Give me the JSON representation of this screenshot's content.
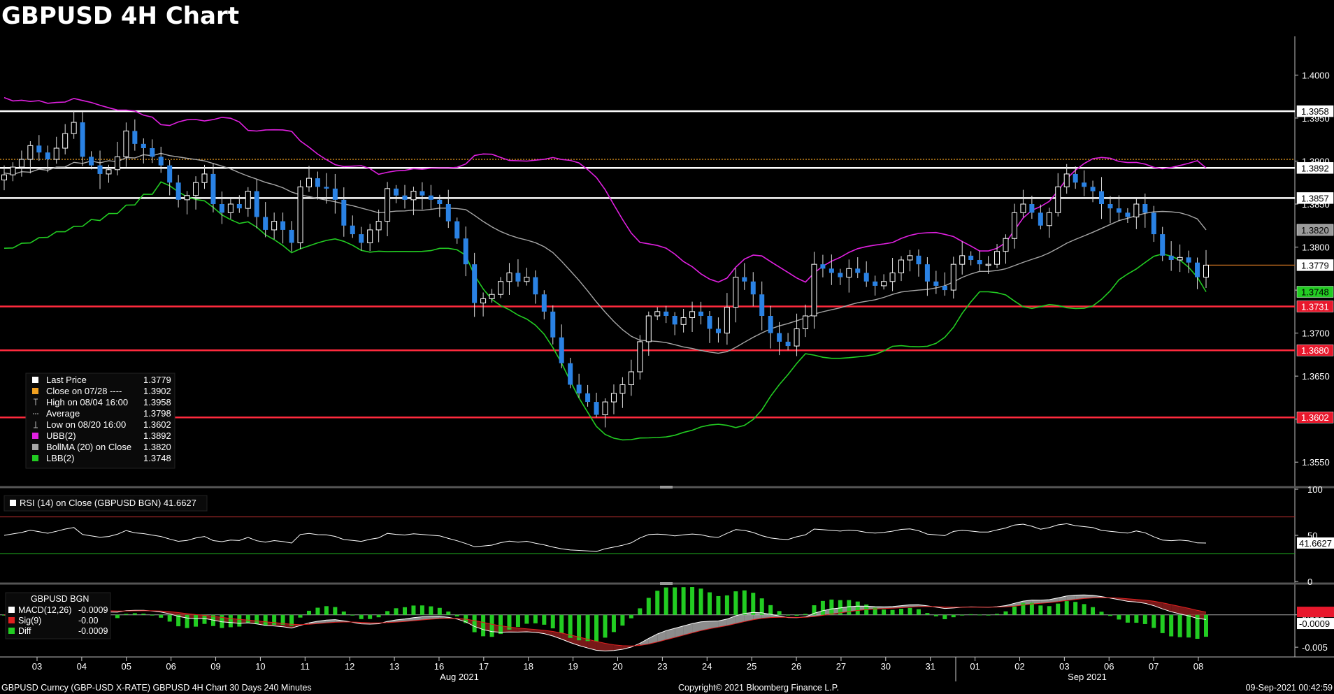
{
  "title": "GBPUSD 4H Chart",
  "colors": {
    "background": "#000000",
    "up_candle": "#ffffff",
    "down_candle": "#2a82e4",
    "ubb": "#e020e0",
    "bollma": "#a6a6a6",
    "lbb": "#22cc22",
    "resistance": "#ffffff",
    "support": "#ff2a3d",
    "close_0728": "#f0a020",
    "last_price": "#c87020",
    "macd": "#ffffff",
    "sig": "#e02020",
    "diff": "#22cc22"
  },
  "chart_data": [
    {
      "type": "candlestick",
      "panel": "price",
      "ylim": [
        1.3525,
        1.4045
      ],
      "y_ticks": [
        "1.4000",
        "1.3950",
        "1.3900",
        "1.3850",
        "1.3800",
        "1.3750",
        "1.3700",
        "1.3650",
        "1.3600",
        "1.3550"
      ],
      "x_tick_labels": [
        "03",
        "04",
        "05",
        "06",
        "09",
        "10",
        "11",
        "12",
        "13",
        "16",
        "17",
        "18",
        "19",
        "20",
        "23",
        "24",
        "25",
        "26",
        "27",
        "30",
        "31",
        "01",
        "02",
        "03",
        "06",
        "07",
        "08"
      ],
      "month_labels": [
        "Aug 2021",
        "Sep 2021"
      ],
      "levels": {
        "resistance": [
          1.3958,
          1.3892,
          1.3857
        ],
        "support": [
          1.3731,
          1.368,
          1.3602
        ],
        "close_0728": 1.3902
      },
      "price_tags": [
        {
          "label": "1.3958",
          "value": 1.3958,
          "style": "white"
        },
        {
          "label": "1.3892",
          "value": 1.3892,
          "style": "white"
        },
        {
          "label": "1.3857",
          "value": 1.3857,
          "style": "white"
        },
        {
          "label": "1.3820",
          "value": 1.382,
          "style": "gray"
        },
        {
          "label": "1.3779",
          "value": 1.3779,
          "style": "white"
        },
        {
          "label": "1.3748",
          "value": 1.3748,
          "style": "green"
        },
        {
          "label": "1.3731",
          "value": 1.3731,
          "style": "red"
        },
        {
          "label": "1.3680",
          "value": 1.368,
          "style": "red"
        },
        {
          "label": "1.3602",
          "value": 1.3602,
          "style": "red"
        }
      ],
      "legend": [
        {
          "label": "Last Price",
          "value": "1.3779",
          "swatch": "white"
        },
        {
          "label": "Close on 07/28 ----",
          "value": "1.3902",
          "swatch": "orange"
        },
        {
          "label": "High on 08/04 16:00",
          "value": "1.3958",
          "swatch": "high"
        },
        {
          "label": "Average",
          "value": "1.3798",
          "swatch": "average"
        },
        {
          "label": "Low on 08/20 16:00",
          "value": "1.3602",
          "swatch": "low"
        },
        {
          "label": "UBB(2)",
          "value": "1.3892",
          "swatch": "magenta"
        },
        {
          "label": "BollMA (20)  on Close",
          "value": "1.3820",
          "swatch": "gray"
        },
        {
          "label": "LBB(2)",
          "value": "1.3748",
          "swatch": "green"
        }
      ],
      "close_series": [
        1.3884,
        1.3893,
        1.3902,
        1.3918,
        1.391,
        1.3902,
        1.3915,
        1.3932,
        1.3945,
        1.3905,
        1.3895,
        1.3885,
        1.389,
        1.3905,
        1.3935,
        1.392,
        1.3915,
        1.3905,
        1.3895,
        1.3875,
        1.3855,
        1.386,
        1.3875,
        1.3885,
        1.385,
        1.384,
        1.385,
        1.3845,
        1.3865,
        1.3835,
        1.382,
        1.383,
        1.382,
        1.3805,
        1.387,
        1.388,
        1.387,
        1.3868,
        1.3855,
        1.3825,
        1.3815,
        1.3805,
        1.382,
        1.383,
        1.3868,
        1.386,
        1.3855,
        1.3865,
        1.386,
        1.3855,
        1.385,
        1.383,
        1.381,
        1.378,
        1.3735,
        1.374,
        1.3745,
        1.376,
        1.377,
        1.376,
        1.3765,
        1.3745,
        1.3725,
        1.3695,
        1.3665,
        1.364,
        1.363,
        1.362,
        1.3605,
        1.362,
        1.363,
        1.364,
        1.3655,
        1.369,
        1.372,
        1.3725,
        1.372,
        1.371,
        1.3718,
        1.3725,
        1.372,
        1.3705,
        1.37,
        1.373,
        1.3765,
        1.376,
        1.3745,
        1.372,
        1.37,
        1.369,
        1.3685,
        1.3705,
        1.372,
        1.378,
        1.3775,
        1.377,
        1.3765,
        1.3775,
        1.377,
        1.376,
        1.3755,
        1.376,
        1.377,
        1.3785,
        1.379,
        1.378,
        1.376,
        1.3755,
        1.375,
        1.378,
        1.379,
        1.3785,
        1.378,
        1.378,
        1.3795,
        1.381,
        1.384,
        1.385,
        1.384,
        1.3825,
        1.384,
        1.387,
        1.3885,
        1.3875,
        1.387,
        1.3865,
        1.385,
        1.3845,
        1.384,
        1.3835,
        1.385,
        1.384,
        1.3815,
        1.379,
        1.3785,
        1.3788,
        1.3782,
        1.3765,
        1.3779
      ]
    },
    {
      "type": "line",
      "panel": "rsi",
      "label": "RSI (14)  on Close (GBPUSD BGN) 41.6627",
      "ylim": [
        0,
        100
      ],
      "y_ticks": [
        "100",
        "50",
        "0"
      ],
      "levels": {
        "overbought": 70,
        "oversold": 30
      },
      "last_value_label": "41.6627",
      "last_value": 41.6627
    },
    {
      "type": "line",
      "panel": "macd",
      "ylim": [
        -0.0065,
        0.0045
      ],
      "y_ticks": [
        "0.000",
        "-0.005"
      ],
      "last_value_label": "-0.0009",
      "legend_title": "GBPUSD BGN",
      "legend": [
        {
          "label": "MACD(12,26)",
          "value": "-0.0009",
          "swatch": "white"
        },
        {
          "label": "Sig(9)",
          "value": "-0.00",
          "swatch": "red"
        },
        {
          "label": "Diff",
          "value": "-0.0009",
          "swatch": "green"
        }
      ]
    }
  ],
  "footer": {
    "left": "GBPUSD Curncy (GBP-USD X-RATE) GBPUSD 4H Chart 30 Days 240 Minutes",
    "center": "Copyright© 2021 Bloomberg Finance L.P.",
    "right": "09-Sep-2021 00:42:59"
  }
}
